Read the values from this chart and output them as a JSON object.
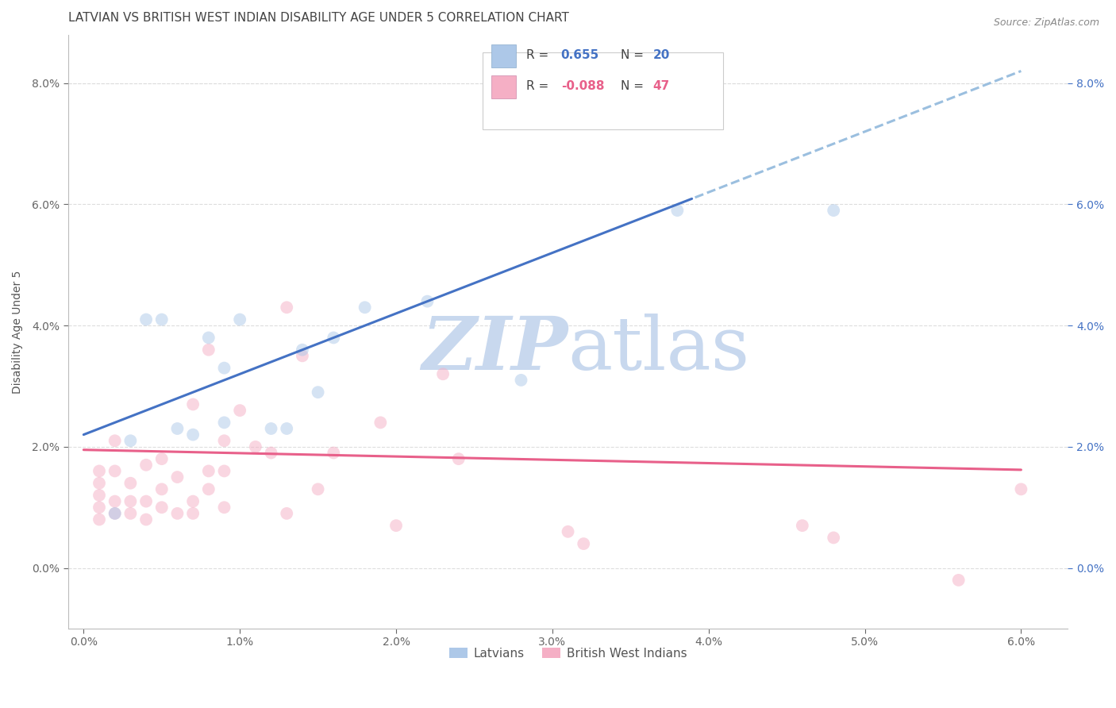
{
  "title": "LATVIAN VS BRITISH WEST INDIAN DISABILITY AGE UNDER 5 CORRELATION CHART",
  "source": "Source: ZipAtlas.com",
  "ylabel": "Disability Age Under 5",
  "xlim": [
    -0.001,
    0.063
  ],
  "ylim": [
    -0.01,
    0.088
  ],
  "x_ticks": [
    0.0,
    0.01,
    0.02,
    0.03,
    0.04,
    0.05,
    0.06
  ],
  "y_ticks": [
    0.0,
    0.02,
    0.04,
    0.06,
    0.08
  ],
  "latvian_R": 0.655,
  "latvian_N": 20,
  "bwi_R": -0.088,
  "bwi_N": 47,
  "latvian_color": "#adc8e8",
  "bwi_color": "#f5afc5",
  "latvian_line_color": "#4472c4",
  "bwi_line_color": "#e8608a",
  "dashed_line_color": "#9bbfdf",
  "watermark_color": "#c8d8ee",
  "background_color": "#ffffff",
  "grid_color": "#dddddd",
  "right_axis_color": "#4472c4",
  "latvian_x": [
    0.002,
    0.003,
    0.004,
    0.005,
    0.006,
    0.007,
    0.008,
    0.009,
    0.009,
    0.01,
    0.012,
    0.013,
    0.014,
    0.015,
    0.016,
    0.018,
    0.022,
    0.028,
    0.038,
    0.048
  ],
  "latvian_y": [
    0.009,
    0.021,
    0.041,
    0.041,
    0.023,
    0.022,
    0.038,
    0.024,
    0.033,
    0.041,
    0.023,
    0.023,
    0.036,
    0.029,
    0.038,
    0.043,
    0.044,
    0.031,
    0.059,
    0.059
  ],
  "bwi_x": [
    0.001,
    0.001,
    0.001,
    0.001,
    0.001,
    0.002,
    0.002,
    0.002,
    0.002,
    0.003,
    0.003,
    0.003,
    0.004,
    0.004,
    0.004,
    0.005,
    0.005,
    0.005,
    0.006,
    0.006,
    0.007,
    0.007,
    0.007,
    0.008,
    0.008,
    0.008,
    0.009,
    0.009,
    0.009,
    0.01,
    0.011,
    0.012,
    0.013,
    0.013,
    0.014,
    0.015,
    0.016,
    0.019,
    0.02,
    0.023,
    0.024,
    0.031,
    0.032,
    0.046,
    0.048,
    0.056,
    0.06
  ],
  "bwi_y": [
    0.008,
    0.01,
    0.012,
    0.014,
    0.016,
    0.009,
    0.011,
    0.016,
    0.021,
    0.009,
    0.011,
    0.014,
    0.008,
    0.011,
    0.017,
    0.01,
    0.013,
    0.018,
    0.009,
    0.015,
    0.009,
    0.011,
    0.027,
    0.013,
    0.016,
    0.036,
    0.01,
    0.016,
    0.021,
    0.026,
    0.02,
    0.019,
    0.009,
    0.043,
    0.035,
    0.013,
    0.019,
    0.024,
    0.007,
    0.032,
    0.018,
    0.006,
    0.004,
    0.007,
    0.005,
    -0.002,
    0.013
  ],
  "title_fontsize": 11,
  "axis_label_fontsize": 10,
  "tick_fontsize": 10,
  "legend_fontsize": 11,
  "source_fontsize": 9,
  "marker_size": 130,
  "marker_alpha": 0.5,
  "line_width": 2.2,
  "latvian_line_intercept": 0.022,
  "latvian_line_slope": 1.0,
  "bwi_line_intercept": 0.0195,
  "bwi_line_slope": -0.055
}
